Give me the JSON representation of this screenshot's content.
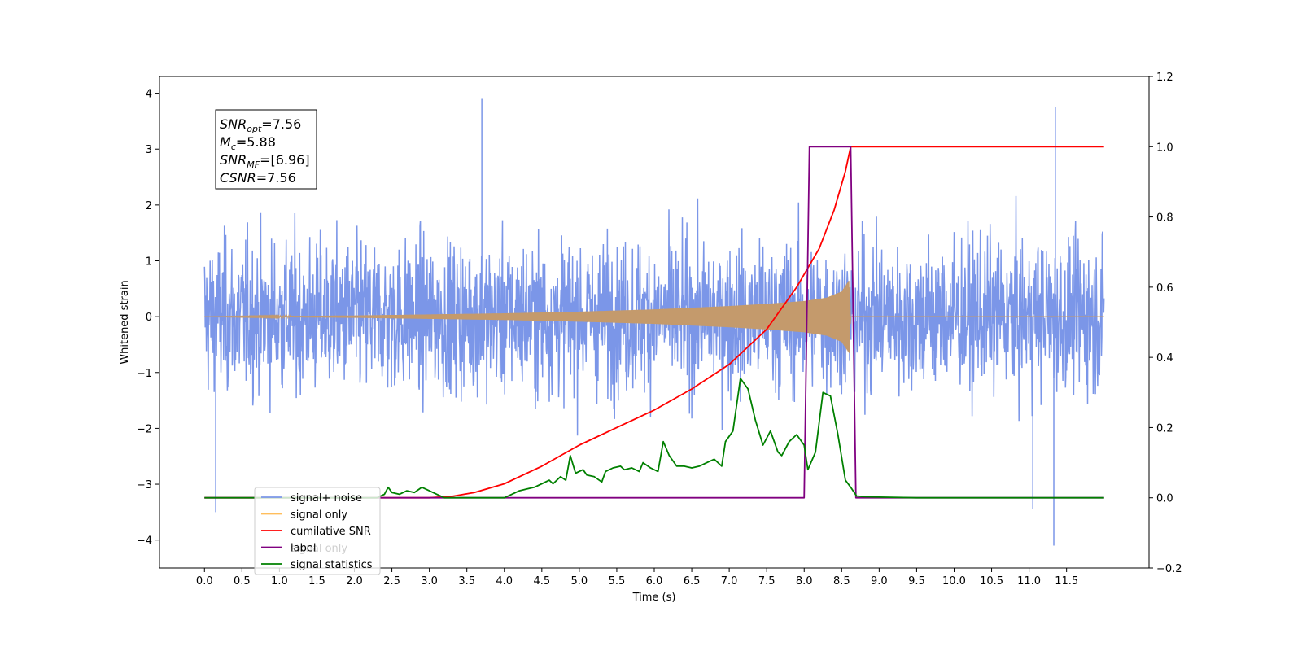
{
  "chart_data": {
    "type": "line",
    "xlabel": "Time (s)",
    "ylabel": "Whitened strain",
    "xlim": [
      -0.6,
      12.6
    ],
    "ylim": [
      -4.5,
      4.3
    ],
    "y2lim": [
      -0.2,
      1.2
    ],
    "x_ticks": [
      "0.0",
      "0.5",
      "1.0",
      "1.5",
      "2.0",
      "2.5",
      "3.0",
      "3.5",
      "4.0",
      "4.5",
      "5.0",
      "5.5",
      "6.0",
      "6.5",
      "7.0",
      "7.5",
      "8.0",
      "8.5",
      "9.0",
      "9.5",
      "10.0",
      "10.5",
      "11.0",
      "11.5"
    ],
    "y_ticks": [
      "4",
      "3",
      "2",
      "1",
      "0",
      "−1",
      "−2",
      "−3",
      "−4"
    ],
    "y2_ticks": [
      "1.2",
      "1.0",
      "0.8",
      "0.6",
      "0.4",
      "0.2",
      "0.0",
      "−0.2"
    ],
    "annotation": {
      "lines": [
        {
          "base": "SNR",
          "sub": "opt",
          "value": "=7.56"
        },
        {
          "base": "M",
          "sub": "c",
          "value": "=5.88"
        },
        {
          "base": "SNR",
          "sub": "MF",
          "value": "=[6.96]"
        },
        {
          "base": "CSNR",
          "sub": "",
          "value": "=7.56"
        }
      ]
    },
    "legend": {
      "placement": "lower-left",
      "entries": [
        {
          "label": "signal+ noise",
          "color": "#7b96e8"
        },
        {
          "label": "signal only",
          "color": "#ffbe5c"
        },
        {
          "label": "cumilative SNR",
          "color": "#ff0000"
        },
        {
          "label": "label",
          "color": "#800080"
        },
        {
          "label": "signal statistics",
          "color": "#008000"
        }
      ],
      "hidden_text": "signal only"
    },
    "series": [
      {
        "name": "signal+ noise",
        "axis": "left",
        "color": "#7b96e8",
        "x_range": [
          0.0,
          12.0
        ],
        "envelope_typical": [
          -1.8,
          2.0
        ],
        "notable_peaks": [
          [
            3.7,
            3.9
          ],
          [
            11.35,
            3.75
          ],
          [
            11.33,
            -4.1
          ],
          [
            0.15,
            -3.5
          ],
          [
            11.05,
            -3.45
          ]
        ]
      },
      {
        "name": "signal only",
        "axis": "left",
        "color": "#c49a6c",
        "x_range": [
          0.0,
          12.0
        ],
        "amplitude_envelope": {
          "x": [
            0.0,
            2.0,
            3.0,
            4.0,
            5.0,
            6.0,
            7.0,
            7.5,
            8.0,
            8.3,
            8.5,
            8.6,
            8.62,
            12.0
          ],
          "y": [
            0.0,
            0.02,
            0.04,
            0.06,
            0.09,
            0.13,
            0.19,
            0.23,
            0.28,
            0.34,
            0.45,
            0.65,
            0.0,
            0.0
          ]
        }
      },
      {
        "name": "cumilative SNR",
        "axis": "right",
        "color": "#ff0000",
        "x": [
          0.0,
          3.0,
          3.3,
          3.6,
          4.0,
          4.5,
          5.0,
          5.5,
          6.0,
          6.5,
          7.0,
          7.5,
          7.9,
          8.2,
          8.4,
          8.55,
          8.62,
          12.0
        ],
        "y": [
          0.0,
          0.0,
          0.004,
          0.015,
          0.04,
          0.09,
          0.15,
          0.2,
          0.25,
          0.31,
          0.38,
          0.48,
          0.6,
          0.71,
          0.82,
          0.93,
          1.0,
          1.0
        ]
      },
      {
        "name": "label",
        "axis": "right",
        "color": "#800080",
        "x": [
          0.0,
          8.0,
          8.07,
          8.62,
          8.69,
          12.0
        ],
        "y": [
          0.0,
          0.0,
          1.0,
          1.0,
          0.0,
          0.0
        ]
      },
      {
        "name": "signal statistics",
        "axis": "right",
        "color": "#008000",
        "x": [
          0.0,
          2.3,
          2.4,
          2.45,
          2.5,
          2.6,
          2.7,
          2.8,
          2.9,
          3.0,
          3.1,
          3.2,
          3.5,
          3.8,
          4.0,
          4.1,
          4.2,
          4.3,
          4.4,
          4.5,
          4.6,
          4.65,
          4.75,
          4.82,
          4.88,
          4.95,
          5.05,
          5.1,
          5.2,
          5.3,
          5.35,
          5.45,
          5.55,
          5.6,
          5.7,
          5.8,
          5.85,
          5.95,
          6.05,
          6.12,
          6.2,
          6.3,
          6.4,
          6.5,
          6.6,
          6.7,
          6.8,
          6.9,
          6.95,
          7.05,
          7.15,
          7.25,
          7.35,
          7.45,
          7.55,
          7.65,
          7.7,
          7.8,
          7.9,
          8.0,
          8.05,
          8.15,
          8.25,
          8.35,
          8.45,
          8.55,
          8.62,
          8.7,
          8.8,
          9.0,
          9.5,
          12.0
        ],
        "y": [
          0.0,
          0.0,
          0.01,
          0.03,
          0.015,
          0.01,
          0.02,
          0.015,
          0.03,
          0.02,
          0.01,
          0.0,
          0.0,
          0.0,
          0.0,
          0.01,
          0.02,
          0.025,
          0.03,
          0.04,
          0.05,
          0.04,
          0.06,
          0.05,
          0.12,
          0.07,
          0.08,
          0.065,
          0.06,
          0.045,
          0.075,
          0.085,
          0.09,
          0.08,
          0.085,
          0.075,
          0.1,
          0.085,
          0.075,
          0.16,
          0.12,
          0.09,
          0.09,
          0.085,
          0.09,
          0.1,
          0.11,
          0.09,
          0.16,
          0.19,
          0.34,
          0.31,
          0.22,
          0.15,
          0.19,
          0.13,
          0.12,
          0.16,
          0.18,
          0.15,
          0.08,
          0.13,
          0.3,
          0.29,
          0.18,
          0.05,
          0.03,
          0.005,
          0.003,
          0.002,
          0.0,
          0.0
        ]
      }
    ]
  }
}
